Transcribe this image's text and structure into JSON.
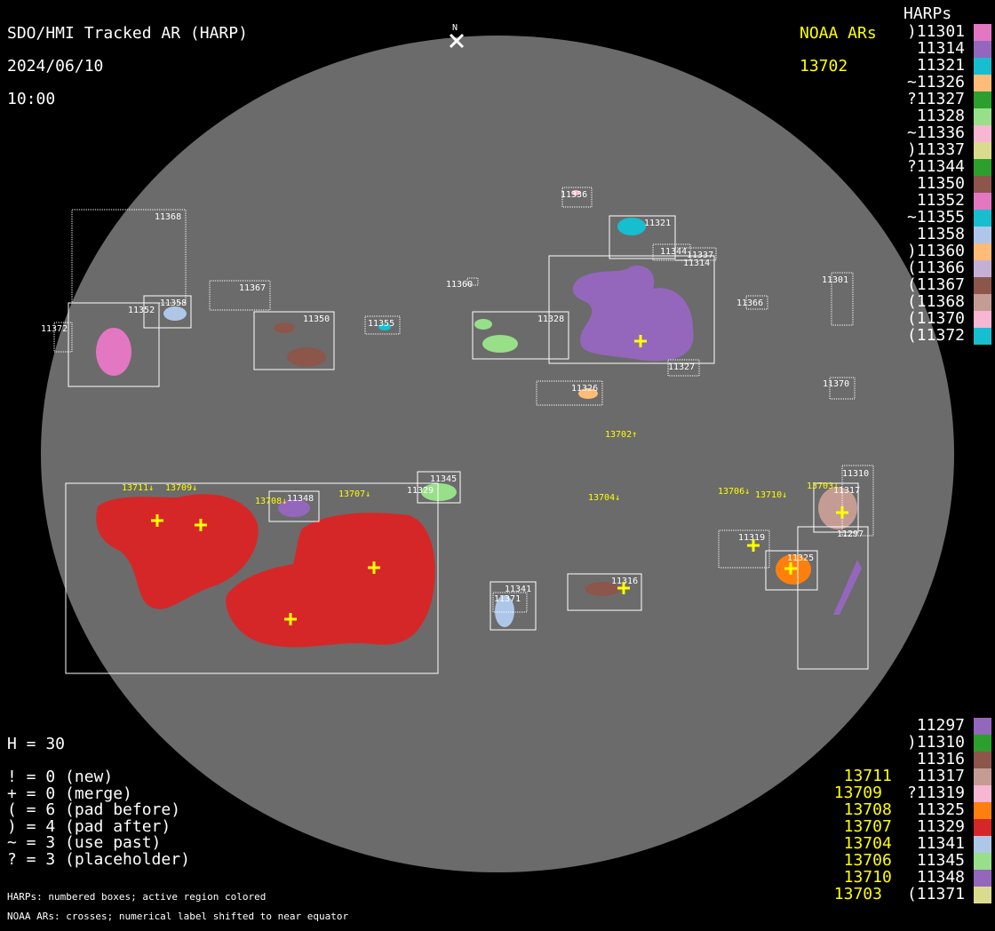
{
  "header": {
    "title": "SDO/HMI Tracked AR (HARP)",
    "date": "2024/06/10",
    "time": "10:00",
    "north": "N"
  },
  "noaa_header": {
    "title": "NOAA ARs",
    "top_list": [
      "13702"
    ]
  },
  "harps_header": "HARPs",
  "harps_top": [
    {
      "label": ")11301",
      "color": "#e377c2"
    },
    {
      "label": "11314",
      "color": "#9467bd"
    },
    {
      "label": "11321",
      "color": "#17becf"
    },
    {
      "label": "~11326",
      "color": "#ffbb78"
    },
    {
      "label": "?11327",
      "color": "#2ca02c"
    },
    {
      "label": "11328",
      "color": "#98df8a"
    },
    {
      "label": "~11336",
      "color": "#f7b6d2"
    },
    {
      "label": ")11337",
      "color": "#dbdb8d"
    },
    {
      "label": "?11344",
      "color": "#2ca02c"
    },
    {
      "label": "11350",
      "color": "#8c564b"
    },
    {
      "label": "11352",
      "color": "#e377c2"
    },
    {
      "label": "~11355",
      "color": "#17becf"
    },
    {
      "label": "11358",
      "color": "#aec7e8"
    },
    {
      "label": ")11360",
      "color": "#ffbb78"
    },
    {
      "label": "(11366",
      "color": "#c5b0d5"
    },
    {
      "label": "(11367",
      "color": "#8c564b"
    },
    {
      "label": "(11368",
      "color": "#c49c94"
    },
    {
      "label": "(11370",
      "color": "#f7b6d2"
    },
    {
      "label": "(11372",
      "color": "#17becf"
    }
  ],
  "harps_bottom": [
    {
      "noaa": "",
      "label": "11297",
      "color": "#9467bd"
    },
    {
      "noaa": "",
      "label": ")11310",
      "color": "#2ca02c"
    },
    {
      "noaa": "",
      "label": "11316",
      "color": "#8c564b"
    },
    {
      "noaa": "13711",
      "label": "11317",
      "color": "#c49c94"
    },
    {
      "noaa": "13709",
      "label": "?11319",
      "color": "#f7b6d2"
    },
    {
      "noaa": "13708",
      "label": "11325",
      "color": "#ff7f0e"
    },
    {
      "noaa": "13707",
      "label": "11329",
      "color": "#d62728"
    },
    {
      "noaa": "13704",
      "label": "11341",
      "color": "#aec7e8"
    },
    {
      "noaa": "13706",
      "label": "11345",
      "color": "#98df8a"
    },
    {
      "noaa": "13710",
      "label": "11348",
      "color": "#9467bd"
    },
    {
      "noaa": "13703",
      "label": "(11371",
      "color": "#dbdb8d"
    }
  ],
  "stats": [
    "H = 30",
    "",
    "! = 0 (new)",
    "+ = 0 (merge)",
    "( = 6 (pad before)",
    ") = 4 (pad after)",
    "~ = 3 (use past)",
    "? = 3 (placeholder)"
  ],
  "notes": [
    "HARPs: numbered boxes; active region colored",
    "NOAA ARs: crosses; numerical label shifted to near equator"
  ],
  "disk_harp_labels": [
    "11368",
    "11358",
    "11352",
    "11372",
    "11367",
    "11350",
    "11355",
    "11360",
    "11328",
    "11336",
    "11321",
    "11344",
    "11337",
    "11314",
    "11327",
    "11326",
    "11366",
    "11301",
    "11370",
    "11329",
    "11345",
    "11348",
    "11310",
    "11317",
    "11297",
    "11319",
    "11325",
    "11316",
    "11341",
    "11371"
  ],
  "disk_noaa_labels": [
    "13711↓",
    "13709↓",
    "13708↓",
    "13707↓",
    "13704↓",
    "13706↓",
    "13710↓",
    "13703↓",
    "13702↑"
  ],
  "colors": {
    "disk": "#6b6b6b",
    "noaa": "#ffff00"
  }
}
